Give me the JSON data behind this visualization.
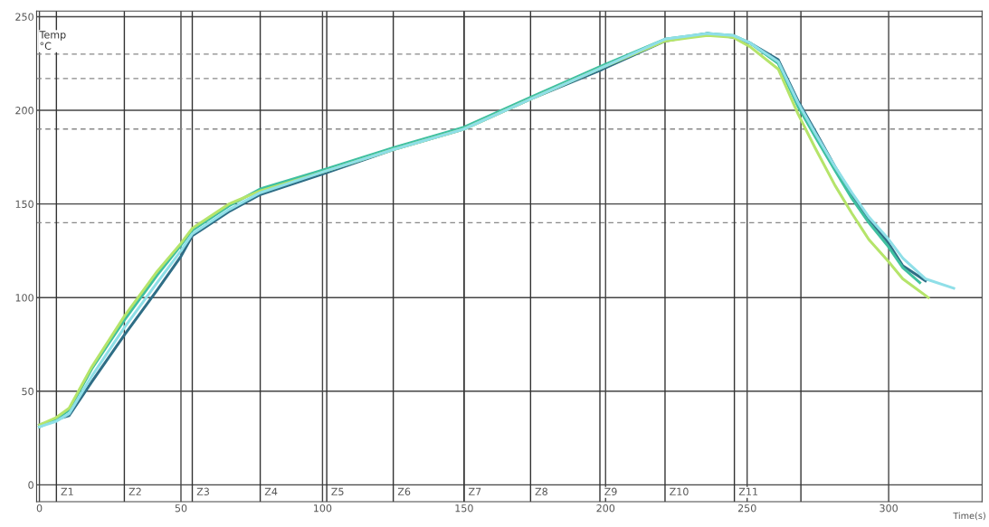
{
  "chart_data": {
    "type": "line",
    "xlabel": "Time(s)",
    "ylabel": "Temp\n°C",
    "xlim": [
      -1,
      333
    ],
    "ylim": [
      -9,
      253
    ],
    "xticks": [
      0,
      50,
      100,
      150,
      200,
      250,
      300
    ],
    "yticks": [
      0,
      50,
      100,
      150,
      200,
      250
    ],
    "grid": true,
    "line_style": "solid",
    "series": [
      {
        "color": "#2f6e86",
        "x": [
          0,
          6,
          10.5,
          18.5,
          30,
          41.6,
          50,
          54,
          67,
          78,
          100,
          125,
          150,
          173.5,
          199,
          221,
          236,
          245,
          251,
          261,
          268,
          274,
          281,
          287,
          293,
          299.5,
          305,
          313
        ],
        "values": [
          32,
          35,
          37,
          55,
          80,
          104,
          122,
          133,
          146,
          155,
          166,
          179,
          190,
          206,
          222,
          237,
          241,
          239,
          236,
          227,
          205,
          189,
          170,
          155,
          142,
          130,
          117,
          109
        ]
      },
      {
        "color": "#3fbfa0",
        "x": [
          0,
          6,
          10.5,
          18.5,
          30,
          41.6,
          50,
          54,
          67,
          78,
          100,
          125,
          150,
          173.5,
          199,
          221,
          236,
          245,
          251,
          261,
          268,
          274,
          281,
          287,
          293,
          299.5,
          305,
          311
        ],
        "values": [
          31,
          35,
          40,
          62,
          88,
          112,
          128,
          136,
          149,
          158,
          168,
          180,
          191,
          207,
          224,
          238,
          241,
          240,
          236,
          225,
          202,
          186,
          168,
          153,
          140,
          128,
          116,
          108
        ]
      },
      {
        "color": "#b5e46a",
        "x": [
          0,
          6,
          10.5,
          18.5,
          30,
          41.6,
          50,
          54,
          67,
          78,
          100,
          125,
          150,
          173.5,
          199,
          221,
          236,
          245,
          251,
          261,
          268,
          274,
          281,
          287,
          293,
          299.5,
          305,
          314
        ],
        "values": [
          32,
          36,
          41,
          63,
          90,
          114,
          129,
          137,
          150,
          157,
          167,
          179,
          190,
          206,
          223,
          237,
          240,
          239,
          234,
          222,
          198,
          180,
          160,
          145,
          131,
          120,
          110,
          100
        ]
      },
      {
        "color": "#8fdfe8",
        "x": [
          0,
          6,
          10.5,
          18.5,
          30,
          41.6,
          50,
          54,
          67,
          78,
          100,
          125,
          150,
          173.5,
          199,
          221,
          236,
          245,
          251,
          261,
          268,
          274,
          281,
          287,
          293,
          299.5,
          305,
          313,
          323
        ],
        "values": [
          31,
          34,
          38,
          58,
          84,
          108,
          125,
          134,
          147,
          156,
          167,
          179,
          190,
          206,
          223,
          238,
          241,
          240,
          236,
          226,
          204,
          188,
          170,
          156,
          143,
          132,
          121,
          110,
          105
        ]
      }
    ],
    "ref_lines": [
      {
        "axis": "y",
        "value": 140,
        "color": "#888888",
        "line_style": "dashed"
      },
      {
        "axis": "y",
        "value": 190,
        "color": "#888888",
        "line_style": "dashed"
      },
      {
        "axis": "y",
        "value": 217,
        "color": "#888888",
        "line_style": "dashed"
      },
      {
        "axis": "y",
        "value": 230,
        "color": "#888888",
        "line_style": "dashed"
      },
      {
        "axis": "x",
        "value": 6,
        "label": "Z1",
        "color": "#333333",
        "line_style": "solid"
      },
      {
        "axis": "x",
        "value": 30,
        "label": "Z2",
        "color": "#333333",
        "line_style": "solid"
      },
      {
        "axis": "x",
        "value": 54,
        "label": "Z3",
        "color": "#333333",
        "line_style": "solid"
      },
      {
        "axis": "x",
        "value": 78,
        "label": "Z4",
        "color": "#333333",
        "line_style": "solid"
      },
      {
        "axis": "x",
        "value": 101.5,
        "label": "Z5",
        "color": "#333333",
        "line_style": "solid"
      },
      {
        "axis": "x",
        "value": 125,
        "label": "Z6",
        "color": "#333333",
        "line_style": "solid"
      },
      {
        "axis": "x",
        "value": 150,
        "label": "Z7",
        "color": "#333333",
        "line_style": "solid"
      },
      {
        "axis": "x",
        "value": 173.5,
        "label": "Z8",
        "color": "#333333",
        "line_style": "solid"
      },
      {
        "axis": "x",
        "value": 198,
        "label": "Z9",
        "color": "#333333",
        "line_style": "solid"
      },
      {
        "axis": "x",
        "value": 221,
        "label": "Z10",
        "color": "#333333",
        "line_style": "solid"
      },
      {
        "axis": "x",
        "value": 245.5,
        "label": "Z11",
        "color": "#333333",
        "line_style": "solid"
      },
      {
        "axis": "x",
        "value": 269,
        "color": "#333333",
        "line_style": "solid"
      }
    ]
  }
}
